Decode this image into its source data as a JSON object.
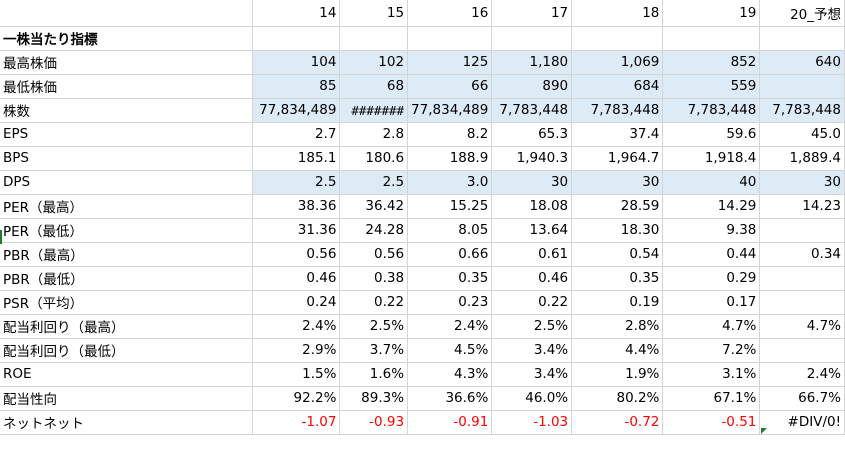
{
  "columns": [
    "",
    "14",
    "15",
    "16",
    "17",
    "18",
    "19",
    "20_予想"
  ],
  "section_title": "一株当たり指標",
  "rows": [
    {
      "label": "最高株価",
      "shade": true,
      "values": [
        "104",
        "102",
        "125",
        "1,180",
        "1,069",
        "852",
        "640"
      ]
    },
    {
      "label": "最低株価",
      "shade": true,
      "values": [
        "85",
        "68",
        "66",
        "890",
        "684",
        "559",
        ""
      ]
    },
    {
      "label": "株数",
      "shade": true,
      "values": [
        "77,834,489",
        "#######",
        "77,834,489",
        "7,783,448",
        "7,783,448",
        "7,783,448",
        "7,783,448"
      ]
    },
    {
      "label": "EPS",
      "shade": false,
      "values": [
        "2.7",
        "2.8",
        "8.2",
        "65.3",
        "37.4",
        "59.6",
        "45.0"
      ]
    },
    {
      "label": "BPS",
      "shade": false,
      "values": [
        "185.1",
        "180.6",
        "188.9",
        "1,940.3",
        "1,964.7",
        "1,918.4",
        "1,889.4"
      ]
    },
    {
      "label": "DPS",
      "shade": true,
      "values": [
        "2.5",
        "2.5",
        "3.0",
        "30",
        "30",
        "40",
        "30"
      ]
    },
    {
      "label": "PER（最高）",
      "shade": false,
      "values": [
        "38.36",
        "36.42",
        "15.25",
        "18.08",
        "28.59",
        "14.29",
        "14.23"
      ]
    },
    {
      "label": "PER（最低）",
      "shade": false,
      "values": [
        "31.36",
        "24.28",
        "8.05",
        "13.64",
        "18.30",
        "9.38",
        ""
      ]
    },
    {
      "label": "PBR（最高）",
      "shade": false,
      "values": [
        "0.56",
        "0.56",
        "0.66",
        "0.61",
        "0.54",
        "0.44",
        "0.34"
      ]
    },
    {
      "label": "PBR（最低）",
      "shade": false,
      "values": [
        "0.46",
        "0.38",
        "0.35",
        "0.46",
        "0.35",
        "0.29",
        ""
      ]
    },
    {
      "label": "PSR（平均）",
      "shade": false,
      "values": [
        "0.24",
        "0.22",
        "0.23",
        "0.22",
        "0.19",
        "0.17",
        ""
      ]
    },
    {
      "label": "配当利回り（最高）",
      "shade": false,
      "values": [
        "2.4%",
        "2.5%",
        "2.4%",
        "2.5%",
        "2.8%",
        "4.7%",
        "4.7%"
      ]
    },
    {
      "label": "配当利回り（最低）",
      "shade": false,
      "values": [
        "2.9%",
        "3.7%",
        "4.5%",
        "3.4%",
        "4.4%",
        "7.2%",
        ""
      ]
    },
    {
      "label": "ROE",
      "shade": false,
      "values": [
        "1.5%",
        "1.6%",
        "4.3%",
        "3.4%",
        "1.9%",
        "3.1%",
        "2.4%"
      ]
    },
    {
      "label": "配当性向",
      "shade": false,
      "values": [
        "92.2%",
        "89.3%",
        "36.6%",
        "46.0%",
        "80.2%",
        "67.1%",
        "66.7%"
      ]
    },
    {
      "label": "ネットネット",
      "shade": false,
      "values": [
        "-1.07",
        "-0.93",
        "-0.91",
        "-1.03",
        "-0.72",
        "-0.51",
        "#DIV/0!"
      ]
    }
  ],
  "colors": {
    "shade": "#ddebf7",
    "negative": "#ff0000",
    "grid": "#d4d4d4"
  }
}
